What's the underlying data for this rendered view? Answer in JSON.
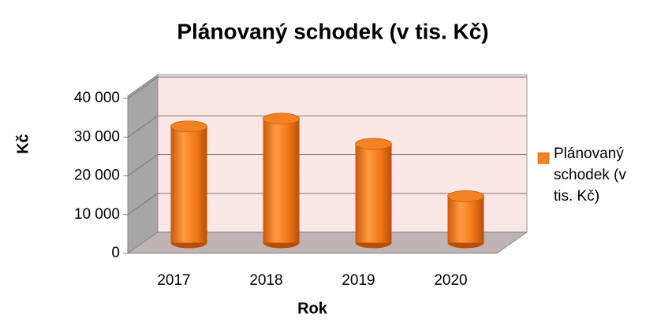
{
  "chart_data": {
    "type": "bar3d",
    "title": "Plánovaný schodek (v tis. Kč)",
    "x_label": "Rok",
    "y_label": "Kč",
    "categories": [
      "2017",
      "2018",
      "2019",
      "2020"
    ],
    "series": [
      {
        "name": "Plánovaný schodek (v tis. Kč)",
        "color": "#f58220",
        "values": [
          30000,
          32000,
          25500,
          12000
        ]
      }
    ],
    "ylim": [
      0,
      40000
    ],
    "yticks": [
      0,
      {
        "value": 10000,
        "label": "10 000"
      },
      {
        "value": 20000,
        "label": "20 000"
      },
      {
        "value": 30000,
        "label": "30 000"
      },
      {
        "value": 40000,
        "label": "40 000"
      }
    ],
    "grid": true,
    "legend": "right"
  }
}
